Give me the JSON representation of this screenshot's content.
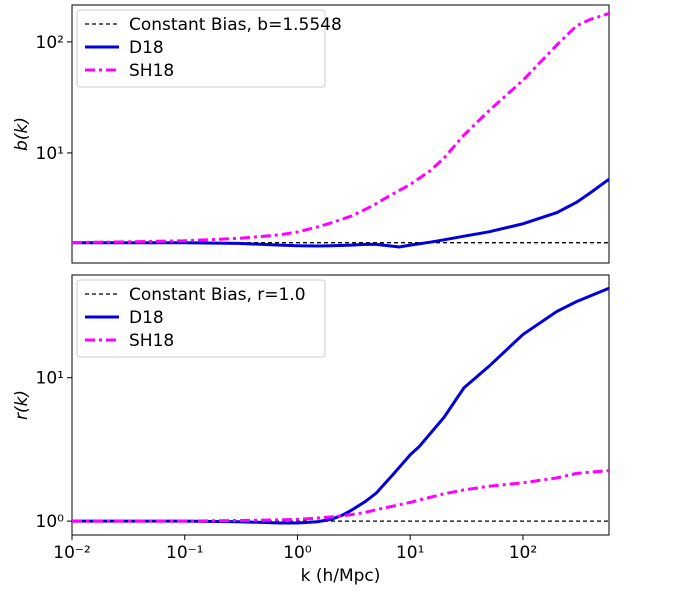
{
  "chart_data": [
    {
      "type": "line",
      "ylabel": "b(k)",
      "log_x": true,
      "log_y": true,
      "legend": "upper left",
      "xlim": [
        0.01,
        580
      ],
      "ylim": [
        1.02,
        215
      ],
      "yticks": [
        {
          "value": 10,
          "label": "10¹"
        },
        {
          "value": 100,
          "label": "10²"
        }
      ],
      "x": [
        0.01,
        0.03,
        0.1,
        0.3,
        0.7,
        1,
        1.5,
        2,
        3,
        4,
        5,
        6,
        8,
        10,
        15,
        20,
        30,
        50,
        100,
        200,
        300,
        400,
        580
      ],
      "series": [
        {
          "name": "Constant Bias, b=1.5548",
          "color": "#000000",
          "dash": "dashed",
          "x": [
            0.01,
            580
          ],
          "values": [
            1.5548,
            1.5548
          ]
        },
        {
          "name": "D18",
          "color": "#0000dd",
          "dash": "solid",
          "values": [
            1.55,
            1.55,
            1.55,
            1.53,
            1.48,
            1.46,
            1.45,
            1.46,
            1.48,
            1.5,
            1.5,
            1.47,
            1.42,
            1.48,
            1.57,
            1.65,
            1.78,
            1.95,
            2.3,
            2.9,
            3.6,
            4.4,
            5.8
          ]
        },
        {
          "name": "SH18",
          "color": "#ff00ff",
          "dash": "dashdot",
          "values": [
            1.56,
            1.58,
            1.62,
            1.7,
            1.83,
            1.94,
            2.15,
            2.35,
            2.7,
            3.1,
            3.5,
            3.9,
            4.6,
            5.2,
            6.9,
            9,
            14.5,
            24,
            45,
            94,
            140,
            160,
            180
          ]
        }
      ]
    },
    {
      "type": "line",
      "ylabel": "r(k)",
      "xlabel": "k (h/Mpc)",
      "log_x": true,
      "log_y": true,
      "legend": "upper left",
      "xlim": [
        0.01,
        580
      ],
      "ylim": [
        0.8,
        52
      ],
      "xticks": [
        {
          "value": 0.01,
          "label": "10⁻²"
        },
        {
          "value": 0.1,
          "label": "10⁻¹"
        },
        {
          "value": 1,
          "label": "10⁰"
        },
        {
          "value": 10,
          "label": "10¹"
        },
        {
          "value": 100,
          "label": "10²"
        }
      ],
      "yticks": [
        {
          "value": 1,
          "label": "10⁰"
        },
        {
          "value": 10,
          "label": "10¹"
        }
      ],
      "x": [
        0.01,
        0.03,
        0.1,
        0.3,
        0.7,
        1,
        1.5,
        2,
        2.5,
        3,
        4,
        5,
        7,
        10,
        12,
        20,
        30,
        50,
        100,
        200,
        300,
        580
      ],
      "series": [
        {
          "name": "Constant Bias, r=1.0",
          "color": "#000000",
          "dash": "dashed",
          "x": [
            0.01,
            580
          ],
          "values": [
            1.0,
            1.0
          ]
        },
        {
          "name": "D18",
          "color": "#0000dd",
          "dash": "solid",
          "values": [
            1.0,
            1.0,
            1.0,
            0.99,
            0.97,
            0.97,
            0.99,
            1.03,
            1.1,
            1.19,
            1.37,
            1.57,
            2.1,
            2.9,
            3.3,
            5.3,
            8.5,
            12,
            20,
            29,
            34,
            42
          ]
        },
        {
          "name": "SH18",
          "color": "#ff00ff",
          "dash": "dashdot",
          "values": [
            1.0,
            1.0,
            1.0,
            1.01,
            1.02,
            1.03,
            1.05,
            1.07,
            1.09,
            1.11,
            1.15,
            1.2,
            1.27,
            1.35,
            1.4,
            1.55,
            1.65,
            1.75,
            1.85,
            2.0,
            2.15,
            2.25
          ]
        }
      ]
    }
  ]
}
